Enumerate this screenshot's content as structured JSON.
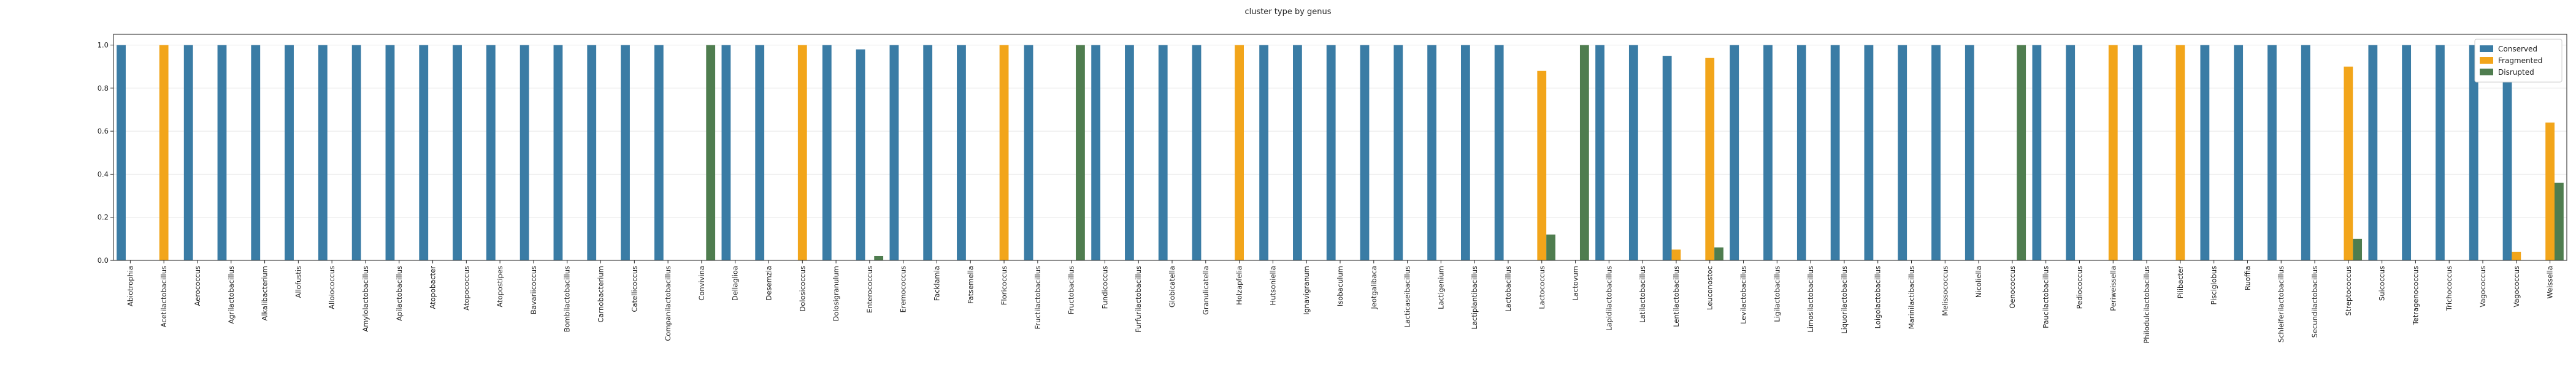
{
  "chart_data": {
    "type": "bar",
    "title": "cluster type by genus",
    "xlabel": "",
    "ylabel": "",
    "ylim": [
      0,
      1.05
    ],
    "yticks": [
      "0.0",
      "0.2",
      "0.4",
      "0.6",
      "0.8",
      "1.0"
    ],
    "grid": "horizontal",
    "legend_position": "top-right",
    "colors": {
      "Conserved": "#3a7ca5",
      "Fragmented": "#f2a51a",
      "Disrupted": "#4f7d4f"
    },
    "categories": [
      "Abiotrophia",
      "Acetilactobacillus",
      "Aerococcus",
      "Agrilactobacillus",
      "Alkalibacterium",
      "Allofustis",
      "Alloiococcus",
      "Amylolactobacillus",
      "Apilactobacillus",
      "Atopobacter",
      "Atopococcus",
      "Atopostipes",
      "Bavariicoccus",
      "Bombilactobacillus",
      "Carnobacterium",
      "Catellicoccus",
      "Companilactobacillus",
      "Convivina",
      "Dellaglioa",
      "Desemzia",
      "Dolosicoccus",
      "Dolosigranulum",
      "Enterococcus",
      "Eremococcus",
      "Facklamia",
      "Fatsemella",
      "Floricoccus",
      "Fructilactobacillus",
      "Fructobacillus",
      "Fundicoccus",
      "Furfurilactobacillus",
      "Globicatella",
      "Granulicatella",
      "Holzapfelia",
      "Hutsoniella",
      "Ignavigranum",
      "Isobaculum",
      "Jeotgalibaca",
      "Lacticaseibacillus",
      "Lactigenium",
      "Lactiplantibacillus",
      "Lactobacillus",
      "Lactococcus",
      "Lactovum",
      "Lapidilactobacillus",
      "Latilactobacillus",
      "Lentilactobacillus",
      "Leuconostoc",
      "Levilactobacillus",
      "Ligilactobacillus",
      "Limosilactobacillus",
      "Liquorilactobacillus",
      "Loigolactobacillus",
      "Marinilactibacillus",
      "Melissococcus",
      "Nicoliella",
      "Oenococcus",
      "Paucilactobacillus",
      "Pediococcus",
      "Periweissella",
      "Philodulcilactobacillus",
      "Pilibacter",
      "Pisciglobus",
      "Ruoffia",
      "Schleiferilactobacillus",
      "Secundilactobacillus",
      "Streptococcus",
      "Suicoccus",
      "Tetragenococcus",
      "Trichococcus",
      "Vagococcus_",
      "Vagococcus",
      "Weissella"
    ],
    "series": [
      {
        "name": "Conserved",
        "values": [
          1,
          0,
          1,
          1,
          1,
          1,
          1,
          1,
          1,
          1,
          1,
          1,
          1,
          1,
          1,
          1,
          1,
          0,
          1,
          1,
          0,
          1,
          0.98,
          1,
          1,
          1,
          0,
          1,
          0,
          1,
          1,
          1,
          1,
          0,
          1,
          1,
          1,
          1,
          1,
          1,
          1,
          1,
          0,
          0,
          1,
          1,
          0.95,
          0,
          1,
          1,
          1,
          1,
          1,
          1,
          1,
          1,
          0,
          1,
          1,
          0,
          1,
          0,
          1,
          1,
          1,
          1,
          0,
          1,
          1,
          1,
          1,
          0.96,
          0
        ]
      },
      {
        "name": "Fragmented",
        "values": [
          0,
          1,
          0,
          0,
          0,
          0,
          0,
          0,
          0,
          0,
          0,
          0,
          0,
          0,
          0,
          0,
          0,
          0,
          0,
          0,
          1,
          0,
          0,
          0,
          0,
          0,
          1,
          0,
          0,
          0,
          0,
          0,
          0,
          1,
          0,
          0,
          0,
          0,
          0,
          0,
          0,
          0,
          0.88,
          0,
          0,
          0,
          0.05,
          0.94,
          0,
          0,
          0,
          0,
          0,
          0,
          0,
          0,
          0,
          0,
          0,
          1,
          0,
          1,
          0,
          0,
          0,
          0,
          0.9,
          0,
          0,
          0,
          0,
          0.04,
          0.64
        ]
      },
      {
        "name": "Disrupted",
        "values": [
          0,
          0,
          0,
          0,
          0,
          0,
          0,
          0,
          0,
          0,
          0,
          0,
          0,
          0,
          0,
          0,
          0,
          1,
          0,
          0,
          0,
          0,
          0.02,
          0,
          0,
          0,
          0,
          0,
          1,
          0,
          0,
          0,
          0,
          0,
          0,
          0,
          0,
          0,
          0,
          0,
          0,
          0,
          0.12,
          1,
          0,
          0,
          0,
          0.06,
          0,
          0,
          0,
          0,
          0,
          0,
          0,
          0,
          1,
          0,
          0,
          0,
          0,
          0,
          0,
          0,
          0,
          0,
          0.1,
          0,
          0,
          0,
          0,
          0,
          0.36
        ]
      }
    ]
  }
}
